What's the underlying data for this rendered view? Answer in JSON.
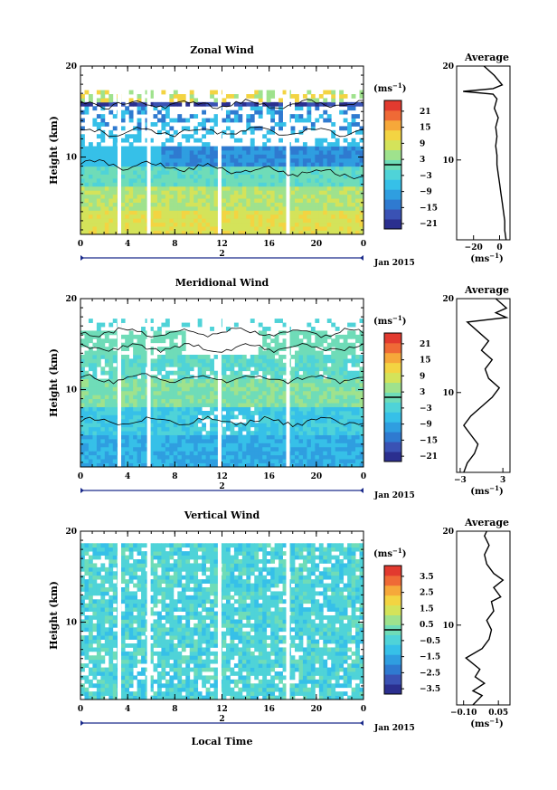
{
  "palette": [
    "#2b2f8f",
    "#3a52b4",
    "#2f7ad0",
    "#2f9ee0",
    "#36c0e8",
    "#4fd3d8",
    "#6fdcb8",
    "#9fe28d",
    "#d4e35a",
    "#f3d442",
    "#f6a83a",
    "#ef6a36",
    "#e23a2f"
  ],
  "chart_data": [
    {
      "type": "heatmap",
      "title": "Zonal Wind",
      "xlabel": "",
      "ylabel": "Height (km)",
      "xlim": [
        0,
        24
      ],
      "ylim": [
        1.5,
        20
      ],
      "x_ticks": [
        "0",
        "4",
        "8",
        "12",
        "16",
        "20",
        "0"
      ],
      "y_ticks": [
        "10",
        "20"
      ],
      "date_marker": "2",
      "date_label": "Jan 2015",
      "colorbar": {
        "unit": "(ms",
        "unit_exp": "−1",
        "unit_close": ")",
        "ticks": [
          "21",
          "15",
          "9",
          "3",
          "−3",
          "−9",
          "−15",
          "−21"
        ],
        "range": [
          -24,
          24
        ]
      },
      "profile": {
        "title": "Average",
        "xlabel": "(ms",
        "xlabel_exp": "−1",
        "xlabel_close": ")",
        "x_ticks": [
          "−20",
          "0"
        ],
        "y_ticks": [
          "10",
          "20"
        ],
        "xlim": [
          -33,
          8
        ],
        "points": [
          [
            5,
            1.5
          ],
          [
            4,
            2.5
          ],
          [
            4,
            3.5
          ],
          [
            3,
            4.5
          ],
          [
            2,
            5.5
          ],
          [
            1,
            6.5
          ],
          [
            0,
            7.5
          ],
          [
            -1,
            8.5
          ],
          [
            -2,
            9.5
          ],
          [
            -2,
            10.5
          ],
          [
            -3,
            11.5
          ],
          [
            -2,
            12.5
          ],
          [
            -3,
            13.5
          ],
          [
            -1,
            14.5
          ],
          [
            -4,
            15.5
          ],
          [
            -2,
            16.5
          ],
          [
            -5,
            17
          ],
          [
            -28,
            17.3
          ],
          [
            -5,
            17.6
          ],
          [
            2,
            18
          ],
          [
            -4,
            19
          ],
          [
            -12,
            20
          ]
        ]
      }
    },
    {
      "type": "heatmap",
      "title": "Meridional Wind",
      "xlabel": "",
      "ylabel": "Height (km)",
      "xlim": [
        0,
        24
      ],
      "ylim": [
        1.5,
        20
      ],
      "x_ticks": [
        "0",
        "4",
        "8",
        "12",
        "16",
        "20",
        "0"
      ],
      "y_ticks": [
        "10",
        "20"
      ],
      "date_marker": "2",
      "date_label": "Jan 2015",
      "colorbar": {
        "unit": "(ms",
        "unit_exp": "−1",
        "unit_close": ")",
        "ticks": [
          "21",
          "15",
          "9",
          "3",
          "−3",
          "−9",
          "−15",
          "−21"
        ],
        "range": [
          -24,
          24
        ]
      },
      "profile": {
        "title": "Average",
        "xlabel": "(ms",
        "xlabel_exp": "−1",
        "xlabel_close": ")",
        "x_ticks": [
          "−3",
          "3"
        ],
        "y_ticks": [
          "10",
          "20"
        ],
        "xlim": [
          -3.5,
          4
        ],
        "points": [
          [
            -2.5,
            1.5
          ],
          [
            -2,
            2.5
          ],
          [
            -1,
            3.5
          ],
          [
            -0.5,
            4.5
          ],
          [
            -1.5,
            5.5
          ],
          [
            -2.5,
            6.5
          ],
          [
            -1.5,
            7.5
          ],
          [
            0,
            8.5
          ],
          [
            1.5,
            9.5
          ],
          [
            2.5,
            10.5
          ],
          [
            1,
            11.5
          ],
          [
            0.5,
            12.5
          ],
          [
            1.5,
            13.5
          ],
          [
            0,
            14.5
          ],
          [
            1,
            15.5
          ],
          [
            -0.5,
            16.5
          ],
          [
            -2,
            17.5
          ],
          [
            3.5,
            18
          ],
          [
            2,
            18.5
          ],
          [
            3.5,
            19
          ],
          [
            2,
            20
          ]
        ]
      }
    },
    {
      "type": "heatmap",
      "title": "Vertical Wind",
      "xlabel": "Local Time",
      "ylabel": "Height (km)",
      "xlim": [
        0,
        24
      ],
      "ylim": [
        1.5,
        20
      ],
      "x_ticks": [
        "0",
        "4",
        "8",
        "12",
        "16",
        "20",
        "0"
      ],
      "y_ticks": [
        "10",
        "20"
      ],
      "date_marker": "2",
      "date_label": "Jan 2015",
      "colorbar": {
        "unit": "(ms",
        "unit_exp": "−1",
        "unit_close": ")",
        "ticks": [
          "3.5",
          "2.5",
          "1.5",
          "0.5",
          "−0.5",
          "−1.5",
          "−2.5",
          "−3.5"
        ],
        "range": [
          -4,
          4
        ]
      },
      "profile": {
        "title": "Average",
        "xlabel": "(ms",
        "xlabel_exp": "−1",
        "xlabel_close": ")",
        "x_ticks": [
          "−0.10",
          "0.05"
        ],
        "y_ticks": [
          "10",
          "20"
        ],
        "xlim": [
          -0.13,
          0.1
        ],
        "points": [
          [
            -0.06,
            1.5
          ],
          [
            -0.02,
            2.5
          ],
          [
            -0.06,
            3
          ],
          [
            -0.01,
            3.8
          ],
          [
            -0.05,
            4.5
          ],
          [
            -0.03,
            5.3
          ],
          [
            -0.09,
            6.5
          ],
          [
            -0.02,
            7.5
          ],
          [
            0.01,
            8.5
          ],
          [
            0.02,
            9.5
          ],
          [
            0.0,
            10.5
          ],
          [
            0.03,
            11.5
          ],
          [
            0.02,
            12.5
          ],
          [
            0.06,
            13
          ],
          [
            0.03,
            14
          ],
          [
            0.07,
            14.8
          ],
          [
            0.03,
            15.5
          ],
          [
            0.0,
            16.5
          ],
          [
            -0.01,
            17.5
          ],
          [
            0.01,
            18.5
          ],
          [
            -0.01,
            19.5
          ],
          [
            0.0,
            20
          ]
        ]
      }
    }
  ]
}
